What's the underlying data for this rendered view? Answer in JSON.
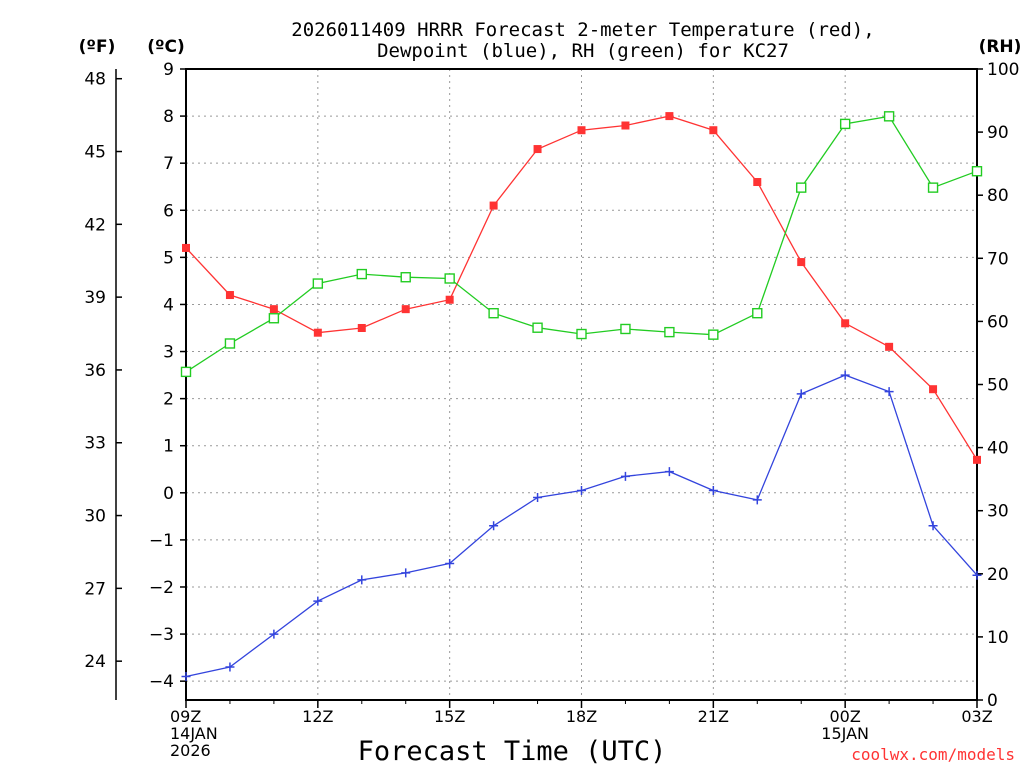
{
  "chart_data": {
    "type": "line",
    "title": [
      "2026011409 HRRR Forecast 2-meter Temperature (red),",
      "Dewpoint (blue), RH (green) for KC27"
    ],
    "xlabel": "Forecast Time (UTC)",
    "credit": "coolwx.com/models",
    "left_axis_f": {
      "unit_label": "(ºF)",
      "range": [
        22.4,
        48.4
      ],
      "ticks": [
        24,
        27,
        30,
        33,
        36,
        39,
        42,
        45,
        48
      ]
    },
    "left_axis_c": {
      "unit_label": "(ºC)",
      "range": [
        -4.4,
        9
      ],
      "ticks": [
        -4,
        -3,
        -2,
        -1,
        0,
        1,
        2,
        3,
        4,
        5,
        6,
        7,
        8,
        9
      ]
    },
    "right_axis_rh": {
      "unit_label": "(RH)",
      "range": [
        0,
        100
      ],
      "ticks": [
        0,
        10,
        20,
        30,
        40,
        50,
        60,
        70,
        80,
        90,
        100
      ]
    },
    "x_range": [
      0,
      18
    ],
    "x_ticks": [
      {
        "x": 0,
        "lines": [
          "09Z",
          "14JAN",
          "2026"
        ]
      },
      {
        "x": 3,
        "lines": [
          "12Z"
        ]
      },
      {
        "x": 6,
        "lines": [
          "15Z"
        ]
      },
      {
        "x": 9,
        "lines": [
          "18Z"
        ]
      },
      {
        "x": 12,
        "lines": [
          "21Z"
        ]
      },
      {
        "x": 15,
        "lines": [
          "00Z",
          "15JAN"
        ]
      },
      {
        "x": 18,
        "lines": [
          "03Z"
        ]
      }
    ],
    "grid": true,
    "series": [
      {
        "name": "Temperature",
        "axis": "c",
        "color": "#ff3333",
        "marker": "filled-square",
        "x": [
          0,
          1,
          2,
          3,
          4,
          5,
          6,
          7,
          8,
          9,
          10,
          11,
          12,
          13,
          14,
          15,
          16,
          17,
          18
        ],
        "values": [
          5.2,
          4.2,
          3.9,
          3.4,
          3.5,
          3.9,
          4.1,
          6.1,
          7.3,
          7.7,
          7.8,
          8.0,
          7.7,
          6.6,
          4.9,
          3.6,
          3.1,
          2.2,
          0.7
        ]
      },
      {
        "name": "Dewpoint",
        "axis": "c",
        "color": "#3344dd",
        "marker": "plus",
        "x": [
          0,
          1,
          2,
          3,
          4,
          5,
          6,
          7,
          8,
          9,
          10,
          11,
          12,
          13,
          14,
          15,
          16,
          17,
          18
        ],
        "values": [
          -3.9,
          -3.7,
          -3.0,
          -2.3,
          -1.85,
          -1.7,
          -1.5,
          -0.7,
          -0.1,
          0.05,
          0.35,
          0.45,
          0.05,
          -0.15,
          2.1,
          2.5,
          2.15,
          -0.7,
          -1.75
        ]
      },
      {
        "name": "RH",
        "axis": "rh",
        "color": "#22cc22",
        "marker": "open-square",
        "x": [
          0,
          1,
          2,
          3,
          4,
          5,
          6,
          7,
          8,
          9,
          10,
          11,
          12,
          13,
          14,
          15,
          16,
          17,
          18
        ],
        "values": [
          52,
          56.5,
          60.5,
          66,
          67.5,
          67,
          66.8,
          61.3,
          59,
          58,
          58.8,
          58.3,
          57.9,
          61.3,
          81.2,
          91.3,
          92.5,
          81.2,
          83.8
        ]
      }
    ]
  }
}
